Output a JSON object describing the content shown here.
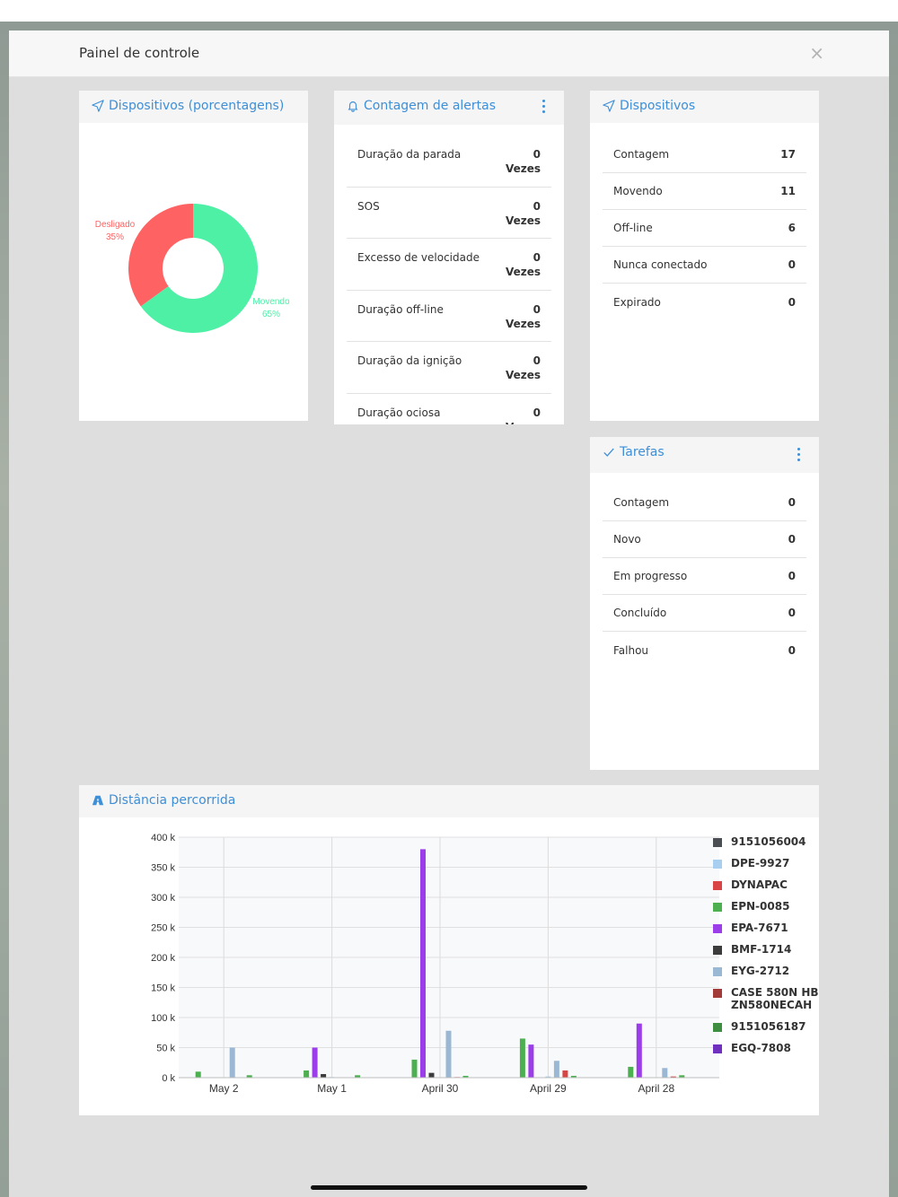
{
  "modal": {
    "title": "Painel de controle",
    "close_glyph": "×"
  },
  "devices_pct": {
    "title": "Dispositivos (porcentagens)",
    "slices": [
      {
        "label": "Desligado",
        "percent_label": "35%",
        "value": 35,
        "color": "#ff6262"
      },
      {
        "label": "Movendo",
        "percent_label": "65%",
        "value": 65,
        "color": "#4ef0a6"
      }
    ]
  },
  "alerts": {
    "title": "Contagem de alertas",
    "unit": "Vezes",
    "rows": [
      {
        "label": "Duração da parada",
        "count": "0"
      },
      {
        "label": "SOS",
        "count": "0"
      },
      {
        "label": "Excesso de velocidade",
        "count": "0"
      },
      {
        "label": "Duração off-line",
        "count": "0"
      },
      {
        "label": "Duração da ignição",
        "count": "0"
      },
      {
        "label": "Duração ociosa",
        "count": "0"
      }
    ]
  },
  "devices": {
    "title": "Dispositivos",
    "rows": [
      {
        "label": "Contagem",
        "value": "17"
      },
      {
        "label": "Movendo",
        "value": "11"
      },
      {
        "label": "Off-line",
        "value": "6"
      },
      {
        "label": "Nunca conectado",
        "value": "0"
      },
      {
        "label": "Expirado",
        "value": "0"
      }
    ]
  },
  "tasks": {
    "title": "Tarefas",
    "rows": [
      {
        "label": "Contagem",
        "value": "0"
      },
      {
        "label": "Novo",
        "value": "0"
      },
      {
        "label": "Em progresso",
        "value": "0"
      },
      {
        "label": "Concluído",
        "value": "0"
      },
      {
        "label": "Falhou",
        "value": "0"
      }
    ]
  },
  "distance": {
    "title": "Distância percorrida"
  },
  "chart_data": {
    "type": "bar",
    "title": "",
    "categories": [
      "May 2",
      "May 1",
      "April 30",
      "April 29",
      "April 28"
    ],
    "ylim": [
      0,
      400000
    ],
    "yticks": [
      0,
      50000,
      100000,
      150000,
      200000,
      250000,
      300000,
      350000,
      400000
    ],
    "ytick_labels": [
      "0 k",
      "50 k",
      "100 k",
      "150 k",
      "200 k",
      "250 k",
      "300 k",
      "350 k",
      "400 k"
    ],
    "grid": true,
    "legend_position": "right",
    "series": [
      {
        "name": "EPN-0085",
        "color": "#4caf50",
        "values": [
          10000,
          12000,
          30000,
          65000,
          18000
        ]
      },
      {
        "name": "EPA-7671",
        "color": "#9c3dea",
        "values": [
          0,
          50000,
          380000,
          55000,
          90000
        ]
      },
      {
        "name": "BMF-1714",
        "color": "#3c3c3c",
        "values": [
          0,
          6000,
          8000,
          0,
          0
        ]
      },
      {
        "name": "DPE-9927",
        "color": "#a9cff0",
        "values": [
          0,
          1000,
          0,
          2000,
          0
        ]
      },
      {
        "name": "EYG-2712",
        "color": "#9ab8d3",
        "values": [
          50000,
          0,
          78000,
          28000,
          16000
        ]
      },
      {
        "name": "DYNAPAC",
        "color": "#d94545",
        "values": [
          0,
          0,
          1000,
          12000,
          2000
        ]
      },
      {
        "name": "9151056187",
        "color": "#4caf50",
        "values": [
          4000,
          4000,
          3000,
          3000,
          4000
        ]
      }
    ],
    "legend": [
      {
        "name": "9151056004",
        "color": "#4b4f54"
      },
      {
        "name": "DPE-9927",
        "color": "#a9cff0"
      },
      {
        "name": "DYNAPAC",
        "color": "#d94545"
      },
      {
        "name": "EPN-0085",
        "color": "#4caf50"
      },
      {
        "name": "EPA-7671",
        "color": "#9c3dea"
      },
      {
        "name": "BMF-1714",
        "color": "#3c3c3c"
      },
      {
        "name": "EYG-2712",
        "color": "#9ab8d3"
      },
      {
        "name": "CASE 580N HBZN580NECAH",
        "color": "#a33a3a"
      },
      {
        "name": "9151056187",
        "color": "#3e8e41"
      },
      {
        "name": "EGQ-7808",
        "color": "#6f2fbf"
      }
    ]
  }
}
